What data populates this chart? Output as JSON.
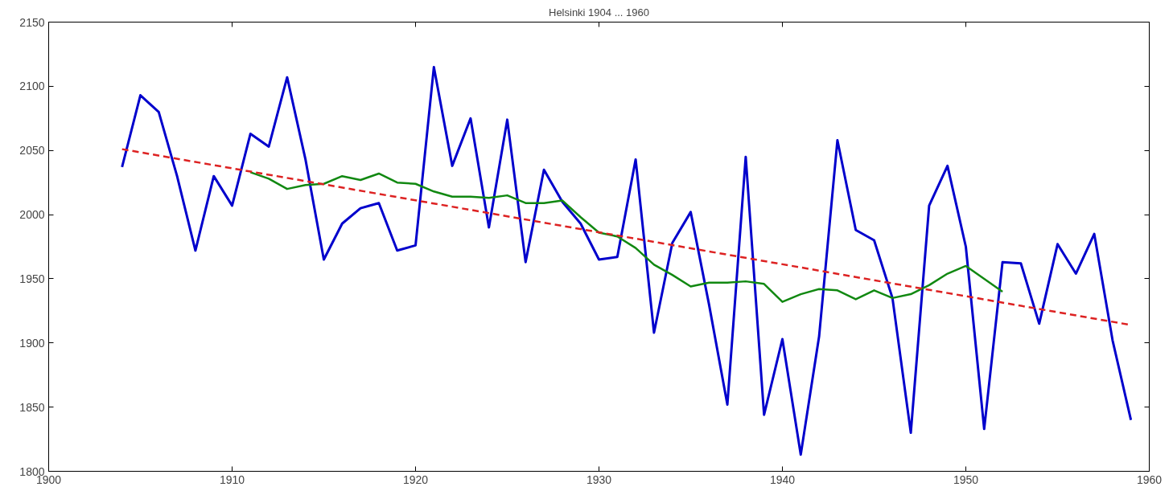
{
  "chart_data": {
    "type": "line",
    "title": "Helsinki 1904 ... 1960",
    "xlim": [
      1900,
      1960
    ],
    "ylim": [
      1800,
      2150
    ],
    "xticks": [
      1900,
      1910,
      1920,
      1930,
      1940,
      1950,
      1960
    ],
    "yticks": [
      1800,
      1850,
      1900,
      1950,
      2000,
      2050,
      2100,
      2150
    ],
    "grid": false,
    "series": [
      {
        "color": "#0000cc",
        "line_style": "solid",
        "x": [
          1904,
          1905,
          1906,
          1907,
          1908,
          1909,
          1910,
          1911,
          1912,
          1913,
          1914,
          1915,
          1916,
          1917,
          1918,
          1919,
          1920,
          1921,
          1922,
          1923,
          1924,
          1925,
          1926,
          1927,
          1928,
          1929,
          1930,
          1931,
          1932,
          1933,
          1934,
          1935,
          1936,
          1937,
          1938,
          1939,
          1940,
          1941,
          1942,
          1943,
          1944,
          1945,
          1946,
          1947,
          1948,
          1949,
          1950,
          1951,
          1952,
          1953,
          1954,
          1955,
          1956,
          1957,
          1958,
          1959
        ],
        "values": [
          2037,
          2093,
          2080,
          2030,
          1972,
          2030,
          2007,
          2063,
          2053,
          2107,
          2043,
          1965,
          1993,
          2005,
          2009,
          1972,
          1976,
          2115,
          2038,
          2075,
          1990,
          2074,
          1963,
          2035,
          2010,
          1993,
          1965,
          1967,
          2043,
          1908,
          1978,
          2002,
          1930,
          1852,
          2045,
          1844,
          1903,
          1813,
          1905,
          2058,
          1988,
          1980,
          1935,
          1830,
          2007,
          2038,
          1975,
          1833,
          1963,
          1962,
          1915,
          1977,
          1954,
          1985,
          1902,
          1840
        ]
      },
      {
        "color": "#118811",
        "line_style": "solid",
        "x": [
          1911,
          1912,
          1913,
          1914,
          1915,
          1916,
          1917,
          1918,
          1919,
          1920,
          1921,
          1922,
          1923,
          1924,
          1925,
          1926,
          1927,
          1928,
          1929,
          1930,
          1931,
          1932,
          1933,
          1934,
          1935,
          1936,
          1937,
          1938,
          1939,
          1940,
          1941,
          1942,
          1943,
          1944,
          1945,
          1946,
          1947,
          1948,
          1949,
          1950,
          1951,
          1952
        ],
        "values": [
          2033,
          2028,
          2020,
          2023,
          2024,
          2030,
          2027,
          2032,
          2025,
          2024,
          2018,
          2014,
          2014,
          2013,
          2015,
          2009,
          2009,
          2011,
          1998,
          1986,
          1983,
          1974,
          1961,
          1953,
          1944,
          1947,
          1947,
          1948,
          1946,
          1932,
          1938,
          1942,
          1941,
          1934,
          1941,
          1935,
          1938,
          1945,
          1954,
          1960,
          1950,
          1940
        ]
      },
      {
        "color": "#dd2222",
        "line_style": "dashed",
        "x": [
          1904,
          1959
        ],
        "values": [
          2051,
          1914
        ]
      }
    ]
  }
}
